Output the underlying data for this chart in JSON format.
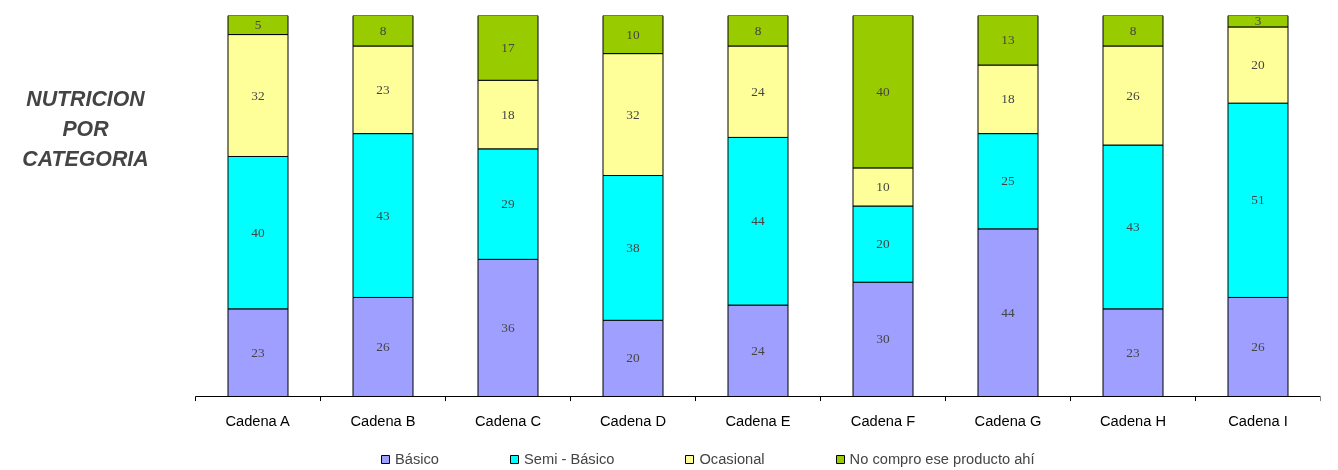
{
  "chart_data": {
    "type": "bar",
    "stacked": true,
    "title": "NUTRICION POR CATEGORIA",
    "categories": [
      "Cadena A",
      "Cadena B",
      "Cadena C",
      "Cadena D",
      "Cadena E",
      "Cadena F",
      "Cadena G",
      "Cadena H",
      "Cadena I"
    ],
    "series": [
      {
        "name": "Básico",
        "color": "#9f9fff",
        "values": [
          23,
          26,
          36,
          20,
          24,
          30,
          44,
          23,
          26
        ]
      },
      {
        "name": "Semi - Básico",
        "color": "#00ffff",
        "values": [
          40,
          43,
          29,
          38,
          44,
          20,
          25,
          43,
          51
        ]
      },
      {
        "name": "Ocasional",
        "color": "#ffff99",
        "values": [
          32,
          23,
          18,
          32,
          24,
          10,
          18,
          26,
          20
        ]
      },
      {
        "name": "No compro ese producto ahí",
        "color": "#99cc00",
        "values": [
          5,
          8,
          17,
          10,
          8,
          40,
          13,
          8,
          3
        ]
      }
    ],
    "data_labels": true,
    "legend": "bottom"
  }
}
